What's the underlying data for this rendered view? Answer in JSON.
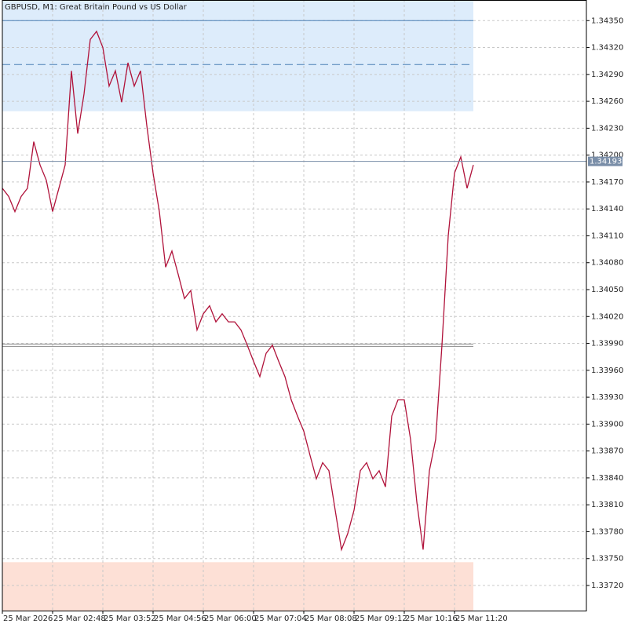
{
  "chart_data": {
    "type": "line",
    "title": "GBPUSD, M1:  Great Britain Pound vs US Dollar",
    "categories": [
      "25 Mar 2026",
      null,
      null,
      null,
      null,
      null,
      null,
      null,
      "25 Mar 02:48",
      null,
      null,
      null,
      null,
      null,
      null,
      null,
      "25 Mar 03:52",
      null,
      null,
      null,
      null,
      null,
      null,
      null,
      "25 Mar 04:56",
      null,
      null,
      null,
      null,
      null,
      null,
      null,
      "25 Mar 06:00",
      null,
      null,
      null,
      null,
      null,
      null,
      null,
      "25 Mar 07:04",
      null,
      null,
      null,
      null,
      null,
      null,
      null,
      "25 Mar 08:08",
      null,
      null,
      null,
      null,
      null,
      null,
      null,
      "25 Mar 09:12",
      null,
      null,
      null,
      null,
      null,
      null,
      null,
      "25 Mar 10:16",
      null,
      null,
      null,
      null,
      null,
      null,
      null,
      "25 Mar 11:20",
      null,
      null,
      null
    ],
    "values": [
      1.34163,
      1.34154,
      1.34137,
      1.34154,
      1.34163,
      1.34215,
      1.34189,
      1.34172,
      1.34137,
      1.34163,
      1.34189,
      1.34294,
      1.34224,
      1.34268,
      1.34329,
      1.34338,
      1.3432,
      1.34277,
      1.34294,
      1.34259,
      1.34303,
      1.34277,
      1.34294,
      1.34233,
      1.3418,
      1.34137,
      1.34075,
      1.34093,
      1.34067,
      1.3404,
      1.34049,
      1.34005,
      1.34023,
      1.34032,
      1.34014,
      1.34023,
      1.34014,
      1.34014,
      1.34005,
      1.33988,
      1.3397,
      1.33953,
      1.33979,
      1.33988,
      1.3397,
      1.33953,
      1.33927,
      1.33909,
      1.33892,
      1.33865,
      1.33839,
      1.33857,
      1.33848,
      1.33804,
      1.3376,
      1.33778,
      1.33804,
      1.33848,
      1.33857,
      1.33839,
      1.33848,
      1.3383,
      1.33909,
      1.33927,
      1.33927,
      1.33883,
      1.33813,
      1.3376,
      1.33848,
      1.33883,
      1.33988,
      1.3411,
      1.3418,
      1.34198,
      1.34163,
      1.34189
    ],
    "color": "#b0123a",
    "ylim": [
      1.33692,
      1.34373
    ],
    "yticks": [
      {
        "value": 1.3372,
        "label": "1.33720"
      },
      {
        "value": 1.3375,
        "label": "1.33750"
      },
      {
        "value": 1.3378,
        "label": "1.33780"
      },
      {
        "value": 1.3381,
        "label": "1.33810"
      },
      {
        "value": 1.3384,
        "label": "1.33840"
      },
      {
        "value": 1.3387,
        "label": "1.33870"
      },
      {
        "value": 1.339,
        "label": "1.33900"
      },
      {
        "value": 1.3393,
        "label": "1.33930"
      },
      {
        "value": 1.3396,
        "label": "1.33960"
      },
      {
        "value": 1.3399,
        "label": "1.33990"
      },
      {
        "value": 1.3402,
        "label": "1.34020"
      },
      {
        "value": 1.3405,
        "label": "1.34050"
      },
      {
        "value": 1.3408,
        "label": "1.34080"
      },
      {
        "value": 1.3411,
        "label": "1.34110"
      },
      {
        "value": 1.3414,
        "label": "1.34140"
      },
      {
        "value": 1.3417,
        "label": "1.34170"
      },
      {
        "value": 1.342,
        "label": "1.34200"
      },
      {
        "value": 1.3423,
        "label": "1.34230"
      },
      {
        "value": 1.3426,
        "label": "1.34260"
      },
      {
        "value": 1.3429,
        "label": "1.34290"
      },
      {
        "value": 1.3432,
        "label": "1.34320"
      },
      {
        "value": 1.3435,
        "label": "1.34350"
      }
    ],
    "grid": true,
    "bands": [
      {
        "from": 1.34249,
        "to": 1.34373,
        "color": "#ddecfb"
      },
      {
        "from": 1.33692,
        "to": 1.33746,
        "color": "#fde0d6"
      }
    ],
    "levels": [
      {
        "value": 1.3435,
        "color": "#4a7fb5",
        "style": "solid"
      },
      {
        "value": 1.34301,
        "color": "#4a7fb5",
        "style": "dashed"
      },
      {
        "value": 1.33988,
        "color": "#8a8a8a",
        "style": "double"
      }
    ],
    "current_price": 1.34193
  }
}
